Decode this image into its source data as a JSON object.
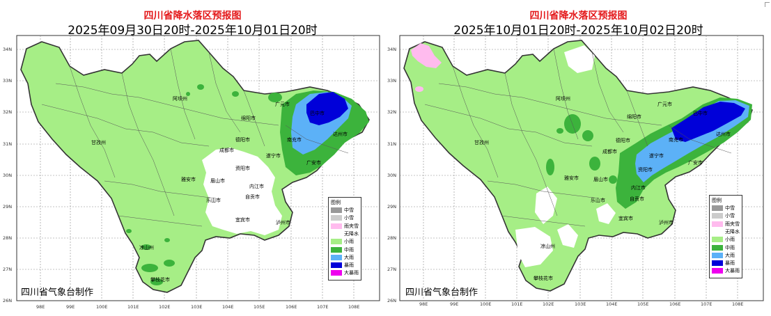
{
  "legend": {
    "title": "图例",
    "items": [
      {
        "label": "中雪",
        "color": "#999999"
      },
      {
        "label": "小雪",
        "color": "#cccccc"
      },
      {
        "label": "雨夹雪",
        "color": "#ffbbee"
      },
      {
        "label": "无降水",
        "color": "#ffffff"
      },
      {
        "label": "小雨",
        "color": "#a6ee86"
      },
      {
        "label": "中雨",
        "color": "#3cb33c"
      },
      {
        "label": "大雨",
        "color": "#5cb1f7"
      },
      {
        "label": "暴雨",
        "color": "#0000d9"
      },
      {
        "label": "大暴雨",
        "color": "#ee00ee"
      }
    ]
  },
  "axis": {
    "lon_labels": [
      "98E",
      "99E",
      "100E",
      "101E",
      "102E",
      "103E",
      "104E",
      "105E",
      "106E",
      "107E",
      "108E"
    ],
    "lat_labels": [
      "34N",
      "33N",
      "32N",
      "31N",
      "30N",
      "29N",
      "28N",
      "27N",
      "26N"
    ]
  },
  "panels": [
    {
      "title": "四川省降水落区预报图",
      "subtitle": "2025年09月30日20时-2025年10月01日20时",
      "credit": "四川省气象台制作",
      "city_labels": [
        "阿坝州",
        "甘孜州",
        "凉山州",
        "攀枝花市",
        "雅安市",
        "眉山市",
        "乐山市",
        "成都市",
        "德阳市",
        "绵阳市",
        "广元市",
        "巴中市",
        "达州市",
        "南充市",
        "遂宁市",
        "资阳市",
        "内江市",
        "自贡市",
        "宜宾市",
        "泸州市",
        "广安市"
      ]
    },
    {
      "title": "四川省降水落区预报图",
      "subtitle": "2025年10月01日20时-2025年10月02日20时",
      "credit": "四川省气象台制作",
      "city_labels": [
        "阿坝州",
        "甘孜州",
        "凉山州",
        "攀枝花市",
        "雅安市",
        "眉山市",
        "乐山市",
        "成都市",
        "德阳市",
        "绵阳市",
        "广元市",
        "巴中市",
        "达州市",
        "南充市",
        "遂宁市",
        "资阳市",
        "内江市",
        "自贡市",
        "宜宾市",
        "泸州市",
        "广安市"
      ]
    }
  ]
}
